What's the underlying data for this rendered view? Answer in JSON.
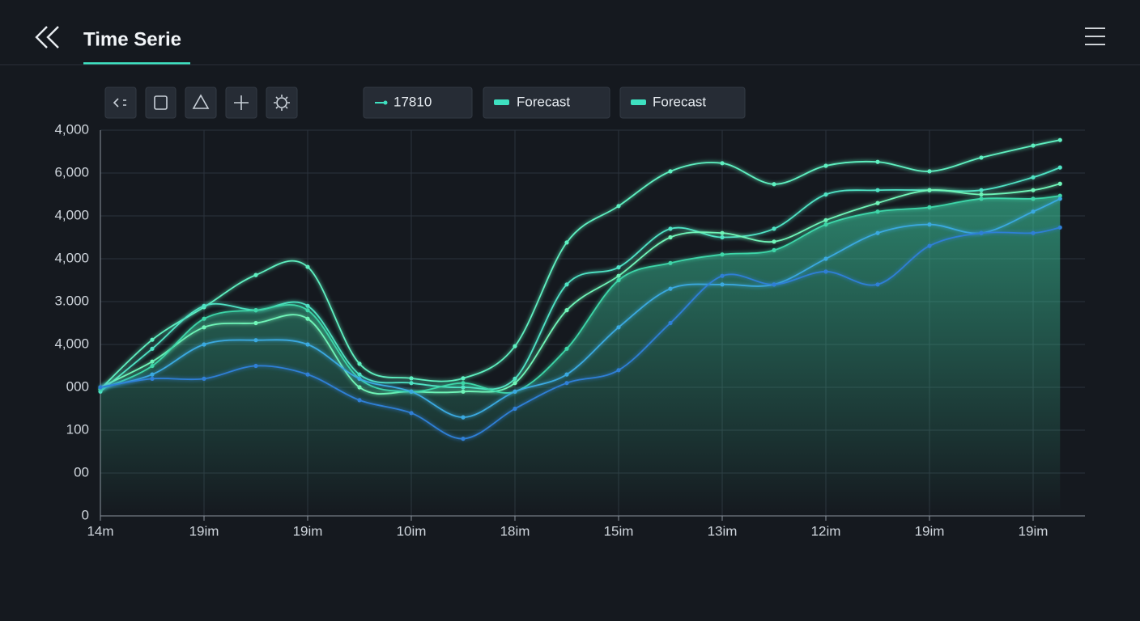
{
  "header": {
    "title": "Time Serie"
  },
  "toolbar": {
    "chips": [
      "17810",
      "Forecast",
      "Forecast"
    ]
  },
  "chart_data": {
    "type": "line",
    "x": [
      0,
      0.5,
      1,
      1.5,
      2,
      2.5,
      3,
      3.5,
      4,
      4.5,
      5,
      5.5,
      6,
      6.5,
      7,
      7.5,
      8,
      8.5,
      9,
      9.26
    ],
    "xlim": [
      0,
      9.5
    ],
    "xticks": [
      {
        "value": 0,
        "label": "14m"
      },
      {
        "value": 1,
        "label": "19im"
      },
      {
        "value": 2,
        "label": "19im"
      },
      {
        "value": 3,
        "label": "10im"
      },
      {
        "value": 4,
        "label": "18im"
      },
      {
        "value": 5,
        "label": "15im"
      },
      {
        "value": 6,
        "label": "13im"
      },
      {
        "value": 7,
        "label": "12im"
      },
      {
        "value": 8,
        "label": "19im"
      },
      {
        "value": 9,
        "label": "19im"
      }
    ],
    "ylim": [
      0,
      9
    ],
    "yticks": [
      {
        "value": 0,
        "label": "0"
      },
      {
        "value": 1,
        "label": "00"
      },
      {
        "value": 2,
        "label": "100"
      },
      {
        "value": 3,
        "label": "000"
      },
      {
        "value": 4,
        "label": "4,000"
      },
      {
        "value": 5,
        "label": "3.000"
      },
      {
        "value": 6,
        "label": "4,000"
      },
      {
        "value": 7,
        "label": "4,000"
      },
      {
        "value": 8,
        "label": "6,000"
      },
      {
        "value": 9,
        "label": "4,000"
      }
    ],
    "grid": true,
    "area_series": 3,
    "series": [
      {
        "color": "#5ef0c0",
        "values": [
          2.96,
          4.11,
          4.87,
          5.62,
          5.81,
          3.55,
          3.21,
          3.21,
          3.96,
          6.38,
          7.23,
          8.04,
          8.23,
          7.74,
          8.17,
          8.26,
          8.04,
          8.36,
          8.64,
          8.77
        ]
      },
      {
        "color": "#4fe3c4",
        "values": [
          2.9,
          3.9,
          4.9,
          4.8,
          4.9,
          3.3,
          3.1,
          3.0,
          3.2,
          5.4,
          5.8,
          6.7,
          6.5,
          6.7,
          7.5,
          7.6,
          7.6,
          7.6,
          7.9,
          8.13
        ]
      },
      {
        "color": "#6ff5b8",
        "values": [
          3.0,
          3.6,
          4.4,
          4.5,
          4.6,
          3.0,
          2.9,
          2.9,
          3.1,
          4.8,
          5.6,
          6.5,
          6.6,
          6.4,
          6.9,
          7.3,
          7.6,
          7.5,
          7.6,
          7.75
        ]
      },
      {
        "color": "#3ed6a8",
        "values": [
          2.95,
          3.5,
          4.6,
          4.8,
          4.8,
          3.2,
          2.9,
          3.1,
          2.9,
          3.9,
          5.5,
          5.9,
          6.1,
          6.2,
          6.8,
          7.1,
          7.2,
          7.4,
          7.4,
          7.47
        ]
      },
      {
        "color": "#3aa9e0",
        "values": [
          3.0,
          3.3,
          4.0,
          4.1,
          4.0,
          3.2,
          2.9,
          2.3,
          2.9,
          3.3,
          4.4,
          5.3,
          5.4,
          5.4,
          6.0,
          6.6,
          6.8,
          6.6,
          7.1,
          7.4
        ]
      },
      {
        "color": "#2f7fd6",
        "values": [
          3.0,
          3.2,
          3.2,
          3.5,
          3.3,
          2.7,
          2.4,
          1.8,
          2.5,
          3.1,
          3.4,
          4.5,
          5.6,
          5.4,
          5.7,
          5.4,
          6.3,
          6.6,
          6.6,
          6.73
        ]
      }
    ]
  }
}
